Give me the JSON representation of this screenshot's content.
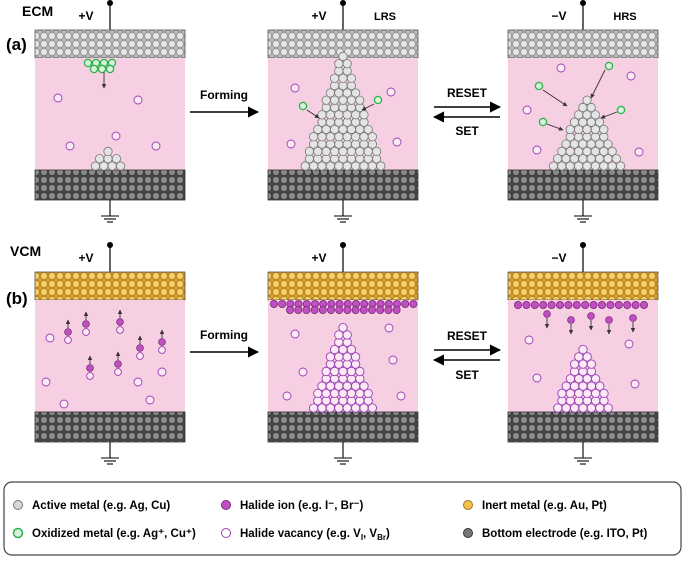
{
  "rows": [
    {
      "panel_label": "(a)",
      "mechanism": "ECM",
      "arrow_label": "Forming",
      "switch_labels": {
        "top": "RESET",
        "bottom": "SET"
      },
      "cells": [
        {
          "voltage": "+V",
          "state": ""
        },
        {
          "voltage": "+V",
          "state": "LRS"
        },
        {
          "voltage": "−V",
          "state": "HRS"
        }
      ]
    },
    {
      "panel_label": "(b)",
      "mechanism": "VCM",
      "arrow_label": "Forming",
      "switch_labels": {
        "top": "RESET",
        "bottom": "SET"
      },
      "cells": [
        {
          "voltage": "+V",
          "state": ""
        },
        {
          "voltage": "+V",
          "state": ""
        },
        {
          "voltage": "−V",
          "state": ""
        }
      ]
    }
  ],
  "legend": [
    {
      "key": "active",
      "text": "Active metal (e.g. Ag, Cu)"
    },
    {
      "key": "halide",
      "text": "Halide ion (e.g. I⁻, Br⁻)"
    },
    {
      "key": "inert",
      "text": "Inert metal (e.g. Au, Pt)"
    },
    {
      "key": "oxidized",
      "text": "Oxidized metal (e.g. Ag⁺, Cu⁺)"
    },
    {
      "key": "vacancy",
      "text": "Halide vacancy (e.g. V",
      "sub1": "I",
      "mid": ", V",
      "sub2": "Br",
      "end": ")"
    },
    {
      "key": "bottom",
      "text": "Bottom electrode (e.g. ITO, Pt)"
    }
  ],
  "colors": {
    "electrolyte": "#f7cfe3",
    "active_metal": "#d8d8d8",
    "bottom_electrode": "#6f6f6f",
    "inert_metal": "#f2c14e",
    "oxidized_edge": "#2bb34a",
    "halide_ion": "#c24fc2",
    "vacancy_edge": "#9a3fb8"
  }
}
